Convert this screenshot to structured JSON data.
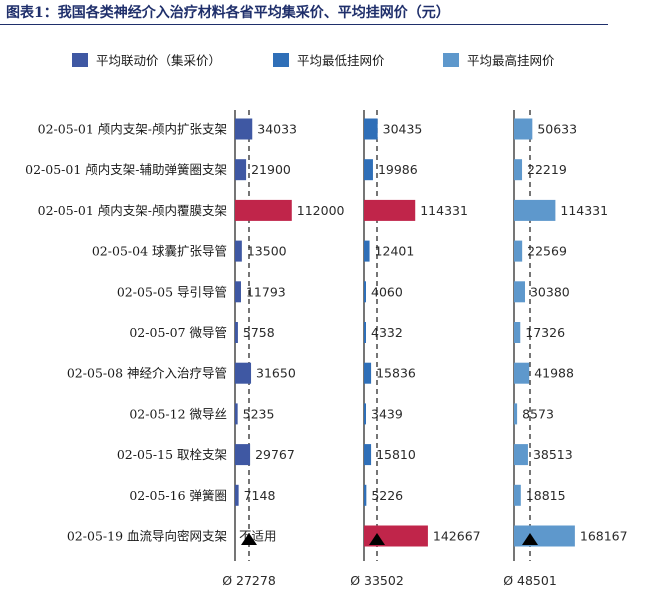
{
  "title": "图表1：我国各类神经介入治疗材料各省平均集采价、平均挂网价（元）",
  "colors": {
    "series0": "#3f58a3",
    "series1": "#2f6fb8",
    "series2": "#5e98cc",
    "highlight": "#c0254a"
  },
  "chart_data": {
    "type": "bar",
    "orientation": "horizontal",
    "categories": [
      "02-05-01 颅内支架-颅内扩张支架",
      "02-05-01 颅内支架-辅助弹簧圈支架",
      "02-05-01 颅内支架-颅内覆膜支架",
      "02-05-04 球囊扩张导管",
      "02-05-05 导引导管",
      "02-05-07 微导管",
      "02-05-08 神经介入治疗导管",
      "02-05-12 微导丝",
      "02-05-15 取栓支架",
      "02-05-16 弹簧圈",
      "02-05-19 血流导向密网支架"
    ],
    "series": [
      {
        "name": "平均联动价（集采价）",
        "values": [
          34033,
          21900,
          112000,
          13500,
          11793,
          5758,
          31650,
          5235,
          29767,
          7148,
          null
        ],
        "labels": [
          "34033",
          "21900",
          "112000",
          "13500",
          "11793",
          "5758",
          "31650",
          "5235",
          "29767",
          "7148",
          "不适用"
        ],
        "average_label": "Ø 27278",
        "average": 27278,
        "highlight": [
          2
        ]
      },
      {
        "name": "平均最低挂网价",
        "values": [
          30435,
          19986,
          114331,
          12401,
          4060,
          4332,
          15836,
          3439,
          15810,
          5226,
          142667
        ],
        "labels": [
          "30435",
          "19986",
          "114331",
          "12401",
          "4060",
          "4332",
          "15836",
          "3439",
          "15810",
          "5226",
          "142667"
        ],
        "average_label": "Ø 33502",
        "average": 33502,
        "highlight": [
          2,
          10
        ]
      },
      {
        "name": "平均最高挂网价",
        "values": [
          50633,
          22219,
          114331,
          22569,
          30380,
          17326,
          41988,
          8573,
          38513,
          18815,
          168167
        ],
        "labels": [
          "50633",
          "22219",
          "114331",
          "22569",
          "30380",
          "17326",
          "41988",
          "8573",
          "38513",
          "18815",
          "168167"
        ],
        "average_label": "Ø 48501",
        "average": 48501,
        "highlight": []
      }
    ]
  }
}
